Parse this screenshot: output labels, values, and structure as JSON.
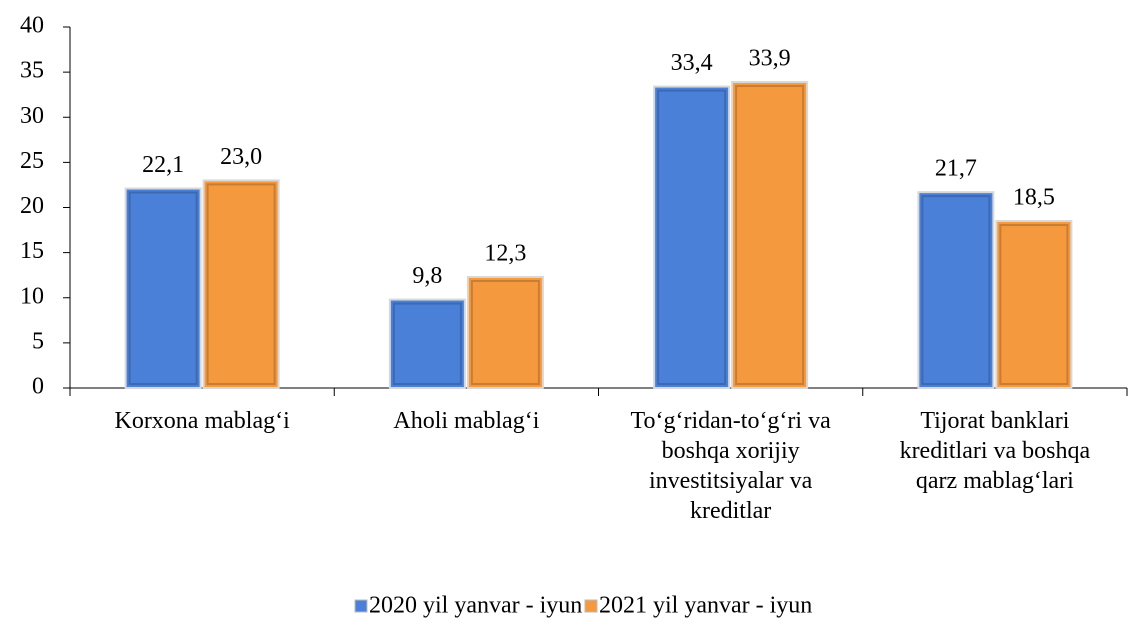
{
  "chart_data": {
    "type": "bar",
    "categories": [
      "Korxona mablag‘i",
      "Aholi mablag‘i",
      "To‘g‘ridan-to‘g‘ri va boshqa xorijiy investitsiyalar va kreditlar",
      "Tijorat banklari kreditlari va boshqa qarz mablag‘lari"
    ],
    "series": [
      {
        "name": "2020 yil yanvar - iyun",
        "color": "#4a80d8",
        "values": [
          22.1,
          9.8,
          33.4,
          21.7
        ],
        "value_labels": [
          "22,1",
          "9,8",
          "33,4",
          "21,7"
        ]
      },
      {
        "name": "2021 yil yanvar - iyun",
        "color": "#f5993f",
        "values": [
          23.0,
          12.3,
          33.9,
          18.5
        ],
        "value_labels": [
          "23,0",
          "12,3",
          "33,9",
          "18,5"
        ]
      }
    ],
    "ylim": [
      0,
      40
    ],
    "yticks": [
      0,
      5,
      10,
      15,
      20,
      25,
      30,
      35,
      40
    ],
    "grid": false,
    "legend": "bottom"
  }
}
